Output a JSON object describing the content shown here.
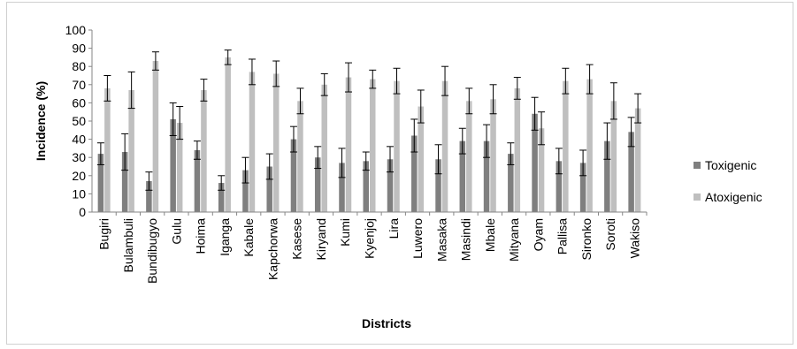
{
  "chart_data": {
    "type": "bar",
    "xlabel": "Districts",
    "ylabel": "Incidence (%)",
    "ylim": [
      0,
      100
    ],
    "yticks": [
      0,
      10,
      20,
      30,
      40,
      50,
      60,
      70,
      80,
      90,
      100
    ],
    "grid": false,
    "legend_position": "right",
    "categories": [
      "Bugiri",
      "Bulambuli",
      "Bundibugyo",
      "Gulu",
      "Hoima",
      "Iganga",
      "Kabale",
      "Kapchorwa",
      "Kasese",
      "Kiryand",
      "Kumi",
      "Kyenjoj",
      "Lira",
      "Luwero",
      "Masaka",
      "Masindi",
      "Mbale",
      "Mityana",
      "Oyam",
      "Pallisa",
      "Sironko",
      "Soroti",
      "Wakiso"
    ],
    "series": [
      {
        "name": "Toxigenic",
        "color": "#7f7f7f",
        "values": [
          32,
          33,
          17,
          51,
          34,
          16,
          23,
          25,
          40,
          30,
          27,
          28,
          29,
          42,
          29,
          39,
          39,
          32,
          54,
          28,
          27,
          39,
          44
        ],
        "error": [
          6,
          10,
          5,
          9,
          5,
          4,
          7,
          7,
          7,
          6,
          8,
          5,
          7,
          9,
          8,
          7,
          9,
          6,
          9,
          7,
          7,
          10,
          8
        ]
      },
      {
        "name": "Atoxigenic",
        "color": "#bfbfbf",
        "values": [
          68,
          67,
          83,
          49,
          67,
          85,
          77,
          76,
          61,
          70,
          74,
          73,
          72,
          58,
          72,
          61,
          62,
          68,
          46,
          72,
          73,
          61,
          57
        ],
        "error": [
          7,
          10,
          5,
          9,
          6,
          4,
          7,
          7,
          7,
          6,
          8,
          5,
          7,
          9,
          8,
          7,
          8,
          6,
          9,
          7,
          8,
          10,
          8
        ]
      }
    ]
  }
}
